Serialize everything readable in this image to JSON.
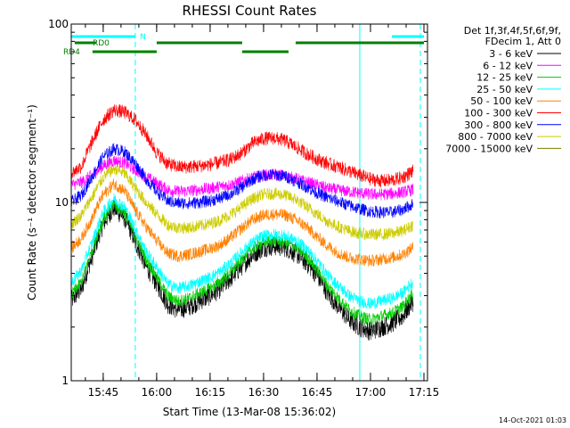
{
  "chart_data": {
    "type": "line",
    "title": "RHESSI Count Rates",
    "xlabel": "Start Time (13-Mar-08 15:36:02)",
    "ylabel": "Count Rate (s⁻¹ detector segment⁻¹)",
    "x_ticks": [
      "15:45",
      "16:00",
      "16:15",
      "16:30",
      "16:45",
      "17:00",
      "17:15"
    ],
    "x_range": [
      "15:36:02",
      "17:16:00"
    ],
    "y_ticks": [
      "1",
      "10",
      "100"
    ],
    "ylim": [
      1,
      100
    ],
    "yscale": "log",
    "grid": false,
    "legend_position": "right",
    "legend_header": [
      "Det 1f,3f,4f,5f,6f,9f,",
      "FDecim 1, Att 0"
    ],
    "series": [
      {
        "name": "3 - 6 keV",
        "color": "#000000",
        "points": [
          [
            "15:36",
            2.8
          ],
          [
            "15:39",
            3.3
          ],
          [
            "15:42",
            5.0
          ],
          [
            "15:45",
            7.6
          ],
          [
            "15:48",
            9.3
          ],
          [
            "15:51",
            8.2
          ],
          [
            "15:54",
            6.0
          ],
          [
            "15:57",
            4.4
          ],
          [
            "16:00",
            3.5
          ],
          [
            "16:03",
            2.7
          ],
          [
            "16:06",
            2.5
          ],
          [
            "16:09",
            2.6
          ],
          [
            "16:12",
            2.8
          ],
          [
            "16:15",
            3.0
          ],
          [
            "16:18",
            3.3
          ],
          [
            "16:21",
            3.8
          ],
          [
            "16:24",
            4.4
          ],
          [
            "16:27",
            5.1
          ],
          [
            "16:30",
            5.6
          ],
          [
            "16:33",
            5.7
          ],
          [
            "16:36",
            5.6
          ],
          [
            "16:39",
            5.2
          ],
          [
            "16:42",
            4.6
          ],
          [
            "16:45",
            3.9
          ],
          [
            "16:48",
            3.1
          ],
          [
            "16:51",
            2.6
          ],
          [
            "16:54",
            2.2
          ],
          [
            "16:57",
            2.0
          ],
          [
            "17:00",
            1.9
          ],
          [
            "17:03",
            2.0
          ],
          [
            "17:06",
            2.1
          ],
          [
            "17:09",
            2.3
          ],
          [
            "17:12",
            2.8
          ]
        ]
      },
      {
        "name": "6 - 12 keV",
        "color": "#ff00ff",
        "points": [
          [
            "15:36",
            12.5
          ],
          [
            "15:39",
            13.0
          ],
          [
            "15:42",
            14.3
          ],
          [
            "15:45",
            16.0
          ],
          [
            "15:48",
            17.2
          ],
          [
            "15:51",
            16.6
          ],
          [
            "15:54",
            15.2
          ],
          [
            "15:57",
            13.9
          ],
          [
            "16:00",
            12.8
          ],
          [
            "16:03",
            11.8
          ],
          [
            "16:06",
            11.5
          ],
          [
            "16:09",
            11.6
          ],
          [
            "16:12",
            11.8
          ],
          [
            "16:15",
            12.0
          ],
          [
            "16:18",
            12.3
          ],
          [
            "16:21",
            12.6
          ],
          [
            "16:24",
            13.2
          ],
          [
            "16:27",
            13.8
          ],
          [
            "16:30",
            14.2
          ],
          [
            "16:33",
            14.3
          ],
          [
            "16:36",
            14.1
          ],
          [
            "16:39",
            13.6
          ],
          [
            "16:42",
            13.0
          ],
          [
            "16:45",
            12.5
          ],
          [
            "16:48",
            12.0
          ],
          [
            "16:51",
            11.7
          ],
          [
            "16:54",
            11.5
          ],
          [
            "16:57",
            11.3
          ],
          [
            "17:00",
            11.1
          ],
          [
            "17:03",
            11.1
          ],
          [
            "17:06",
            11.2
          ],
          [
            "17:09",
            11.4
          ],
          [
            "17:12",
            11.8
          ]
        ]
      },
      {
        "name": "12 - 25 keV",
        "color": "#00cc00",
        "points": [
          [
            "15:36",
            3.0
          ],
          [
            "15:39",
            3.6
          ],
          [
            "15:42",
            5.4
          ],
          [
            "15:45",
            8.0
          ],
          [
            "15:48",
            9.8
          ],
          [
            "15:51",
            8.7
          ],
          [
            "15:54",
            6.4
          ],
          [
            "15:57",
            4.8
          ],
          [
            "16:00",
            3.8
          ],
          [
            "16:03",
            3.0
          ],
          [
            "16:06",
            2.8
          ],
          [
            "16:09",
            2.9
          ],
          [
            "16:12",
            3.1
          ],
          [
            "16:15",
            3.3
          ],
          [
            "16:18",
            3.6
          ],
          [
            "16:21",
            4.1
          ],
          [
            "16:24",
            4.8
          ],
          [
            "16:27",
            5.5
          ],
          [
            "16:30",
            6.0
          ],
          [
            "16:33",
            6.1
          ],
          [
            "16:36",
            6.0
          ],
          [
            "16:39",
            5.6
          ],
          [
            "16:42",
            5.0
          ],
          [
            "16:45",
            4.2
          ],
          [
            "16:48",
            3.4
          ],
          [
            "16:51",
            2.9
          ],
          [
            "16:54",
            2.5
          ],
          [
            "16:57",
            2.3
          ],
          [
            "17:00",
            2.2
          ],
          [
            "17:03",
            2.3
          ],
          [
            "17:06",
            2.4
          ],
          [
            "17:09",
            2.6
          ],
          [
            "17:12",
            3.1
          ]
        ]
      },
      {
        "name": "25 - 50 keV",
        "color": "#00ffff",
        "points": [
          [
            "15:36",
            3.5
          ],
          [
            "15:39",
            4.2
          ],
          [
            "15:42",
            6.0
          ],
          [
            "15:45",
            8.8
          ],
          [
            "15:48",
            10.5
          ],
          [
            "15:51",
            9.4
          ],
          [
            "15:54",
            7.0
          ],
          [
            "15:57",
            5.3
          ],
          [
            "16:00",
            4.3
          ],
          [
            "16:03",
            3.5
          ],
          [
            "16:06",
            3.3
          ],
          [
            "16:09",
            3.4
          ],
          [
            "16:12",
            3.6
          ],
          [
            "16:15",
            3.8
          ],
          [
            "16:18",
            4.1
          ],
          [
            "16:21",
            4.6
          ],
          [
            "16:24",
            5.3
          ],
          [
            "16:27",
            6.0
          ],
          [
            "16:30",
            6.5
          ],
          [
            "16:33",
            6.6
          ],
          [
            "16:36",
            6.5
          ],
          [
            "16:39",
            6.1
          ],
          [
            "16:42",
            5.5
          ],
          [
            "16:45",
            4.7
          ],
          [
            "16:48",
            3.9
          ],
          [
            "16:51",
            3.4
          ],
          [
            "16:54",
            3.0
          ],
          [
            "16:57",
            2.8
          ],
          [
            "17:00",
            2.7
          ],
          [
            "17:03",
            2.8
          ],
          [
            "17:06",
            2.9
          ],
          [
            "17:09",
            3.1
          ],
          [
            "17:12",
            3.6
          ]
        ]
      },
      {
        "name": "50 - 100 keV",
        "color": "#ff8000",
        "points": [
          [
            "15:36",
            5.5
          ],
          [
            "15:39",
            6.3
          ],
          [
            "15:42",
            8.2
          ],
          [
            "15:45",
            11.0
          ],
          [
            "15:48",
            12.7
          ],
          [
            "15:51",
            11.6
          ],
          [
            "15:54",
            9.0
          ],
          [
            "15:57",
            7.3
          ],
          [
            "16:00",
            6.1
          ],
          [
            "16:03",
            5.2
          ],
          [
            "16:06",
            5.0
          ],
          [
            "16:09",
            5.1
          ],
          [
            "16:12",
            5.3
          ],
          [
            "16:15",
            5.5
          ],
          [
            "16:18",
            5.8
          ],
          [
            "16:21",
            6.4
          ],
          [
            "16:24",
            7.2
          ],
          [
            "16:27",
            8.0
          ],
          [
            "16:30",
            8.5
          ],
          [
            "16:33",
            8.6
          ],
          [
            "16:36",
            8.5
          ],
          [
            "16:39",
            8.0
          ],
          [
            "16:42",
            7.3
          ],
          [
            "16:45",
            6.4
          ],
          [
            "16:48",
            5.7
          ],
          [
            "16:51",
            5.2
          ],
          [
            "16:54",
            4.9
          ],
          [
            "16:57",
            4.8
          ],
          [
            "17:00",
            4.7
          ],
          [
            "17:03",
            4.8
          ],
          [
            "17:06",
            4.9
          ],
          [
            "17:09",
            5.1
          ],
          [
            "17:12",
            5.6
          ]
        ]
      },
      {
        "name": "100 - 300 keV",
        "color": "#ff0000",
        "points": [
          [
            "15:36",
            14.5
          ],
          [
            "15:39",
            16.0
          ],
          [
            "15:42",
            22.0
          ],
          [
            "15:45",
            29.0
          ],
          [
            "15:48",
            33.0
          ],
          [
            "15:51",
            32.0
          ],
          [
            "15:54",
            29.0
          ],
          [
            "15:57",
            24.0
          ],
          [
            "16:00",
            19.0
          ],
          [
            "16:03",
            16.5
          ],
          [
            "16:06",
            15.8
          ],
          [
            "16:09",
            15.8
          ],
          [
            "16:12",
            16.0
          ],
          [
            "16:15",
            16.3
          ],
          [
            "16:18",
            16.8
          ],
          [
            "16:21",
            17.5
          ],
          [
            "16:24",
            19.0
          ],
          [
            "16:27",
            21.5
          ],
          [
            "16:30",
            22.8
          ],
          [
            "16:33",
            23.0
          ],
          [
            "16:36",
            22.2
          ],
          [
            "16:39",
            20.5
          ],
          [
            "16:42",
            18.8
          ],
          [
            "16:45",
            17.5
          ],
          [
            "16:48",
            16.5
          ],
          [
            "16:51",
            15.8
          ],
          [
            "16:54",
            15.0
          ],
          [
            "16:57",
            14.2
          ],
          [
            "17:00",
            13.5
          ],
          [
            "17:03",
            13.2
          ],
          [
            "17:06",
            13.3
          ],
          [
            "17:09",
            13.8
          ],
          [
            "17:12",
            15.0
          ]
        ]
      },
      {
        "name": "300 - 800 keV",
        "color": "#0000ff",
        "points": [
          [
            "15:36",
            10.0
          ],
          [
            "15:39",
            11.0
          ],
          [
            "15:42",
            14.0
          ],
          [
            "15:45",
            18.0
          ],
          [
            "15:48",
            20.0
          ],
          [
            "15:51",
            19.2
          ],
          [
            "15:54",
            16.5
          ],
          [
            "15:57",
            13.5
          ],
          [
            "16:00",
            11.5
          ],
          [
            "16:03",
            10.2
          ],
          [
            "16:06",
            9.9
          ],
          [
            "16:09",
            9.9
          ],
          [
            "16:12",
            10.0
          ],
          [
            "16:15",
            10.2
          ],
          [
            "16:18",
            10.6
          ],
          [
            "16:21",
            11.2
          ],
          [
            "16:24",
            12.2
          ],
          [
            "16:27",
            13.5
          ],
          [
            "16:30",
            14.2
          ],
          [
            "16:33",
            14.3
          ],
          [
            "16:36",
            14.0
          ],
          [
            "16:39",
            13.2
          ],
          [
            "16:42",
            12.2
          ],
          [
            "16:45",
            11.3
          ],
          [
            "16:48",
            10.6
          ],
          [
            "16:51",
            10.1
          ],
          [
            "16:54",
            9.6
          ],
          [
            "16:57",
            9.2
          ],
          [
            "17:00",
            8.9
          ],
          [
            "17:03",
            8.8
          ],
          [
            "17:06",
            8.8
          ],
          [
            "17:09",
            9.1
          ],
          [
            "17:12",
            9.8
          ]
        ]
      },
      {
        "name": "800 - 7000 keV",
        "color": "#cccc00",
        "points": [
          [
            "15:36",
            7.5
          ],
          [
            "15:39",
            8.5
          ],
          [
            "15:42",
            10.8
          ],
          [
            "15:45",
            13.8
          ],
          [
            "15:48",
            15.5
          ],
          [
            "15:51",
            14.5
          ],
          [
            "15:54",
            12.0
          ],
          [
            "15:57",
            10.0
          ],
          [
            "16:00",
            8.6
          ],
          [
            "16:03",
            7.5
          ],
          [
            "16:06",
            7.2
          ],
          [
            "16:09",
            7.2
          ],
          [
            "16:12",
            7.4
          ],
          [
            "16:15",
            7.6
          ],
          [
            "16:18",
            8.0
          ],
          [
            "16:21",
            8.6
          ],
          [
            "16:24",
            9.5
          ],
          [
            "16:27",
            10.5
          ],
          [
            "16:30",
            11.1
          ],
          [
            "16:33",
            11.2
          ],
          [
            "16:36",
            11.0
          ],
          [
            "16:39",
            10.4
          ],
          [
            "16:42",
            9.5
          ],
          [
            "16:45",
            8.6
          ],
          [
            "16:48",
            7.8
          ],
          [
            "16:51",
            7.3
          ],
          [
            "16:54",
            6.9
          ],
          [
            "16:57",
            6.7
          ],
          [
            "17:00",
            6.6
          ],
          [
            "17:03",
            6.6
          ],
          [
            "17:06",
            6.7
          ],
          [
            "17:09",
            6.9
          ],
          [
            "17:12",
            7.5
          ]
        ]
      },
      {
        "name": "7000 - 15000 keV",
        "color": "#808000",
        "points": []
      }
    ],
    "state_bars": [
      {
        "name": "N",
        "color": "#00ffff",
        "segments": [
          [
            "15:36",
            "15:54"
          ],
          [
            "17:06",
            "17:15"
          ]
        ]
      },
      {
        "name": "RD0",
        "color": "#008000",
        "segments": [
          [
            "15:37",
            "15:43"
          ],
          [
            "16:00",
            "16:24"
          ],
          [
            "16:39",
            "17:15"
          ]
        ]
      },
      {
        "name": "RD4",
        "color": "#008000",
        "segments": [
          [
            "15:42",
            "16:00"
          ],
          [
            "16:24",
            "16:37"
          ]
        ]
      }
    ],
    "vertical_lines": [
      {
        "time": "15:54",
        "color": "#00ffff",
        "style": "dashed"
      },
      {
        "time": "16:57",
        "color": "#00ffff",
        "style": "solid"
      },
      {
        "time": "17:14",
        "color": "#00ffff",
        "style": "dashed"
      }
    ]
  },
  "footer": {
    "date": "14-Oct-2021 01:03"
  }
}
